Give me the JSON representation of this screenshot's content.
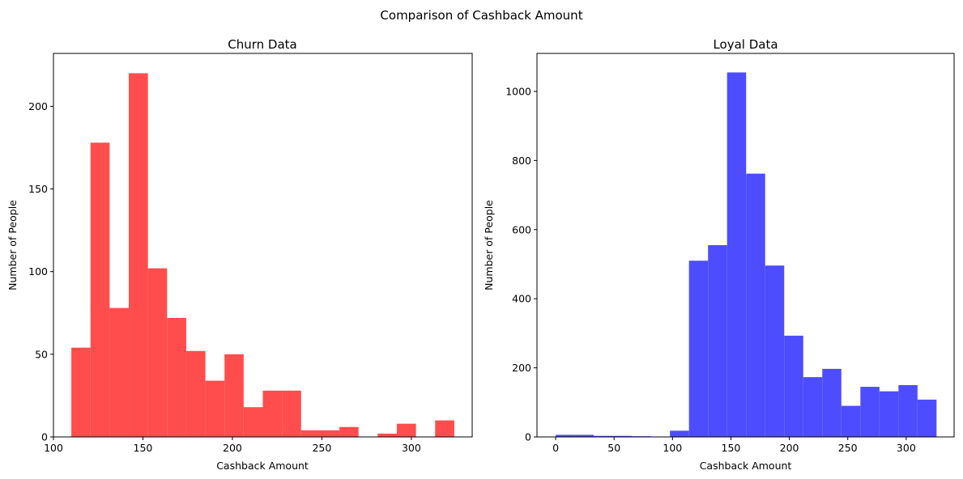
{
  "figure": {
    "title": "Comparison of Cashback Amount"
  },
  "chart_data": [
    {
      "type": "bar",
      "title": "Churn Data",
      "xlabel": "Cashback Amount",
      "ylabel": "Number of People",
      "color": "#ff4d4d",
      "xlim": [
        100,
        334
      ],
      "ylim": [
        0,
        232
      ],
      "xticks": [
        100,
        150,
        200,
        250,
        300
      ],
      "yticks": [
        0,
        50,
        100,
        150,
        200
      ],
      "bin_edges": [
        110,
        120.7,
        131.4,
        142.1,
        152.8,
        163.5,
        174.2,
        184.9,
        195.6,
        206.3,
        217,
        227.7,
        238.4,
        249.1,
        259.8,
        270.5,
        281.2,
        291.9,
        302.6,
        313.3,
        324
      ],
      "values": [
        54,
        178,
        78,
        220,
        102,
        72,
        52,
        34,
        50,
        18,
        28,
        28,
        4,
        4,
        6,
        0,
        2,
        8,
        0,
        10
      ]
    },
    {
      "type": "bar",
      "title": "Loyal Data",
      "xlabel": "Cashback Amount",
      "ylabel": "Number of People",
      "color": "#4d4dff",
      "xlim": [
        -16,
        341
      ],
      "ylim": [
        0,
        1110
      ],
      "xticks": [
        0,
        50,
        100,
        150,
        200,
        250,
        300
      ],
      "yticks": [
        0,
        200,
        400,
        600,
        800,
        1000
      ],
      "bin_edges": [
        0,
        16.3,
        32.6,
        48.9,
        65.2,
        81.5,
        97.8,
        114.1,
        130.4,
        146.7,
        163,
        179.3,
        195.6,
        211.9,
        228.2,
        244.5,
        260.8,
        277.1,
        293.4,
        309.7,
        326
      ],
      "values": [
        6,
        6,
        3,
        3,
        2,
        0,
        18,
        510,
        555,
        1055,
        762,
        496,
        293,
        173,
        197,
        90,
        145,
        132,
        150,
        108
      ]
    }
  ]
}
